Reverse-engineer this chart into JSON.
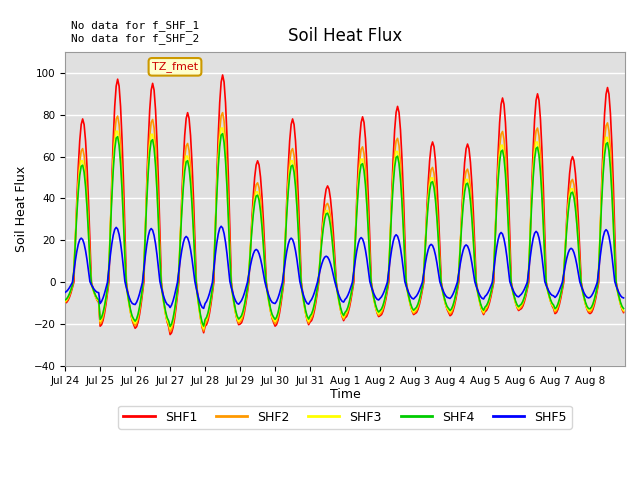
{
  "title": "Soil Heat Flux",
  "ylabel": "Soil Heat Flux",
  "xlabel": "Time",
  "ylim": [
    -40,
    110
  ],
  "yticks": [
    -40,
    -20,
    0,
    20,
    40,
    60,
    80,
    100
  ],
  "annotation_text": "No data for f_SHF_1\nNo data for f_SHF_2",
  "legend_box_text": "TZ_fmet",
  "legend_entries": [
    "SHF1",
    "SHF2",
    "SHF3",
    "SHF4",
    "SHF5"
  ],
  "line_colors": [
    "#ff0000",
    "#ff9900",
    "#ffff00",
    "#00cc00",
    "#0000ff"
  ],
  "background_color": "#ffffff",
  "plot_bg_color": "#e0e0e0",
  "grid_color": "#ffffff",
  "xtick_labels": [
    "Jul 24",
    "Jul 25",
    "Jul 26",
    "Jul 27",
    "Jul 28",
    "Jul 29",
    "Jul 30",
    "Jul 31",
    "Aug 1",
    "Aug 2",
    "Aug 3",
    "Aug 4",
    "Aug 5",
    "Aug 6",
    "Aug 7",
    "Aug 8"
  ],
  "n_days": 16,
  "day_peaks": [
    78,
    97,
    95,
    81,
    99,
    58,
    78,
    46,
    79,
    84,
    67,
    66,
    88,
    90,
    60,
    93
  ],
  "day_troughs": [
    10,
    21,
    22,
    25,
    21,
    20,
    21,
    19,
    17,
    16,
    15,
    16,
    14,
    13,
    15,
    15
  ],
  "peak_scale": [
    1.0,
    0.82,
    0.75,
    0.72,
    0.27
  ],
  "trough_scale": [
    1.0,
    0.95,
    0.9,
    0.85,
    0.5
  ],
  "lag": [
    0.0,
    0.01,
    0.02,
    0.015,
    0.04
  ]
}
